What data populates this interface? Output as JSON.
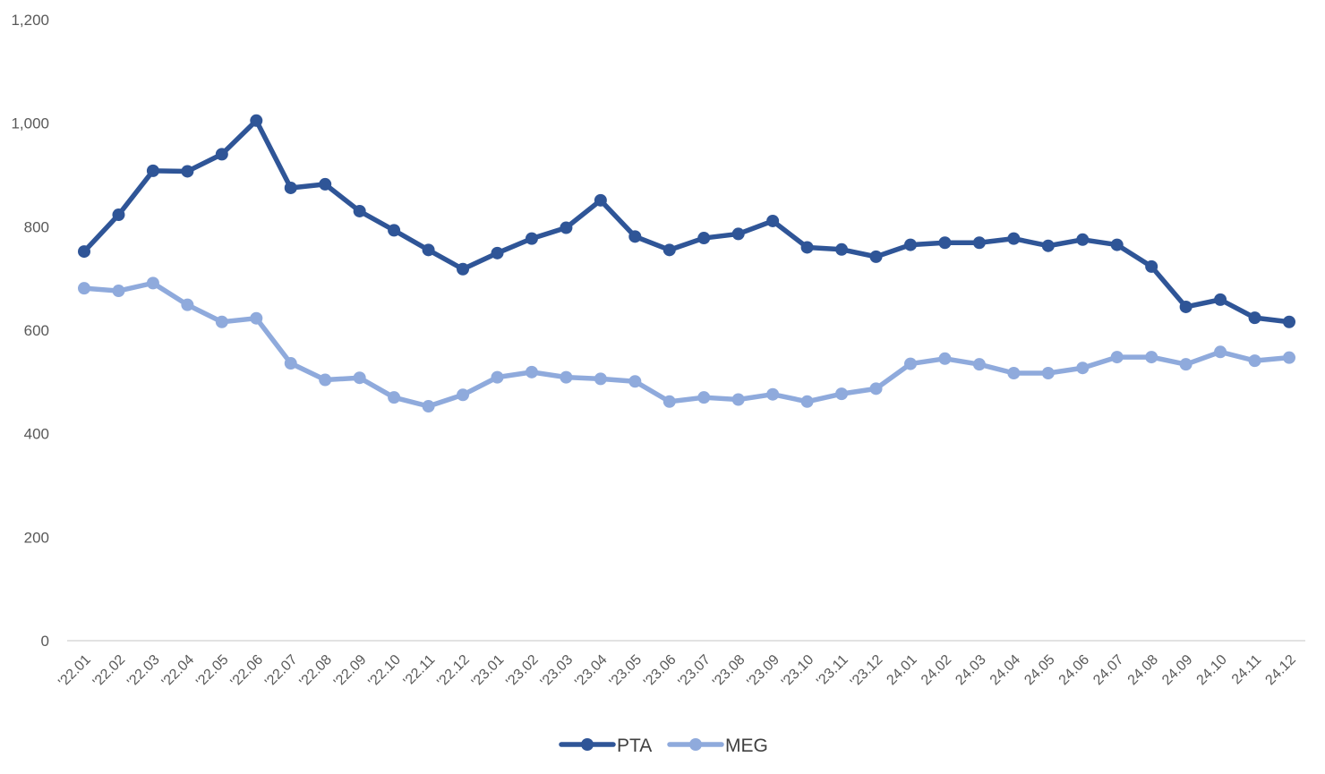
{
  "chart_data": {
    "type": "line",
    "categories": [
      "'22.01",
      "'22.02",
      "'22.03",
      "'22.04",
      "'22.05",
      "'22.06",
      "'22.07",
      "'22.08",
      "'22.09",
      "'22.10",
      "'22.11",
      "'22.12",
      "'23.01",
      "'23.02",
      "'23.03",
      "'23.04",
      "'23.05",
      "'23.06",
      "'23.07",
      "'23.08",
      "'23.09",
      "'23.10",
      "'23.11",
      "'23.12",
      "24.01",
      "24.02",
      "24.03",
      "24.04",
      "24.05",
      "24.06",
      "24.07",
      "24.08",
      "24.09",
      "24.10",
      "24.11",
      "24.12"
    ],
    "series": [
      {
        "name": "PTA",
        "color": "#2f5597",
        "values": [
          752,
          823,
          908,
          907,
          940,
          1005,
          875,
          882,
          830,
          793,
          755,
          718,
          749,
          777,
          798,
          851,
          781,
          755,
          778,
          786,
          811,
          760,
          756,
          742,
          765,
          769,
          769,
          777,
          763,
          775,
          765,
          723,
          645,
          659,
          624,
          616
        ]
      },
      {
        "name": "MEG",
        "color": "#8faadc",
        "values": [
          681,
          676,
          691,
          649,
          616,
          623,
          536,
          504,
          508,
          470,
          453,
          475,
          509,
          519,
          509,
          506,
          501,
          462,
          470,
          466,
          476,
          462,
          477,
          487,
          535,
          545,
          534,
          517,
          517,
          527,
          548,
          548,
          534,
          558,
          541,
          547
        ]
      }
    ],
    "ylim": [
      0,
      1200
    ],
    "yticks": [
      "0",
      "200",
      "400",
      "600",
      "800",
      "1,000",
      "1,200"
    ],
    "ytick_values": [
      0,
      200,
      400,
      600,
      800,
      1000,
      1200
    ],
    "grid": false,
    "legend_position": "bottom-center"
  }
}
